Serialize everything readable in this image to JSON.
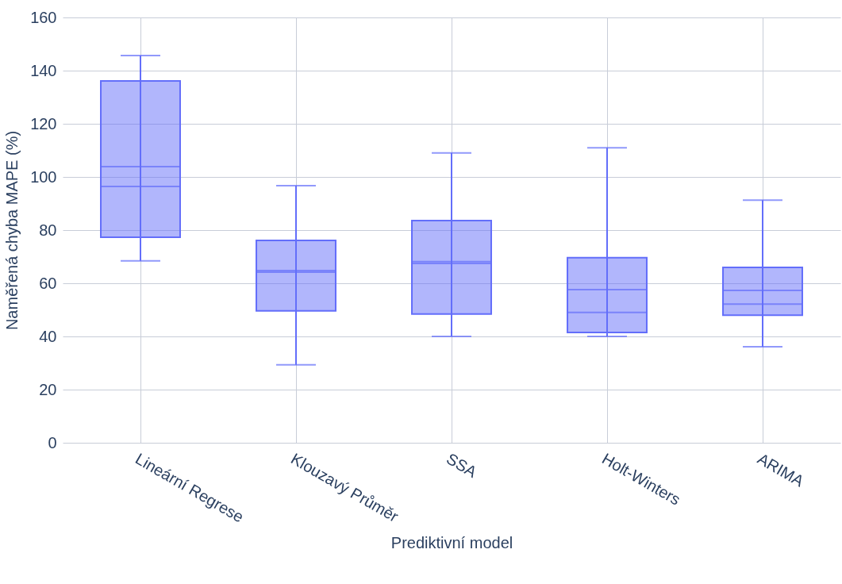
{
  "chart_data": {
    "type": "box",
    "xlabel": "Prediktivní model",
    "ylabel": "Naměřená chyba MAPE (%)",
    "categories": [
      "Lineární Regrese",
      "Klouzavý Průměr",
      "SSA",
      "Holt-Winters",
      "ARIMA"
    ],
    "color": "#636efa",
    "boxes": [
      {
        "low": 68.4,
        "q1": 77.3,
        "median": 96.4,
        "q3": 136.1,
        "high": 145.7,
        "mean": 103.9
      },
      {
        "low": 29.3,
        "q1": 49.6,
        "median": 64.2,
        "q3": 76.1,
        "high": 96.7,
        "mean": 64.8
      },
      {
        "low": 40,
        "q1": 48.4,
        "median": 68.1,
        "q3": 83.6,
        "high": 109,
        "mean": 67.5
      },
      {
        "low": 40,
        "q1": 41.5,
        "median": 49,
        "q3": 69.6,
        "high": 111,
        "mean": 57.6
      },
      {
        "low": 36.1,
        "q1": 48,
        "median": 52.2,
        "q3": 66,
        "high": 91.3,
        "mean": 57.3
      }
    ],
    "ylim": [
      0,
      160
    ],
    "yticks": [
      0,
      20,
      40,
      60,
      80,
      100,
      120,
      140,
      160
    ],
    "grid": true
  }
}
